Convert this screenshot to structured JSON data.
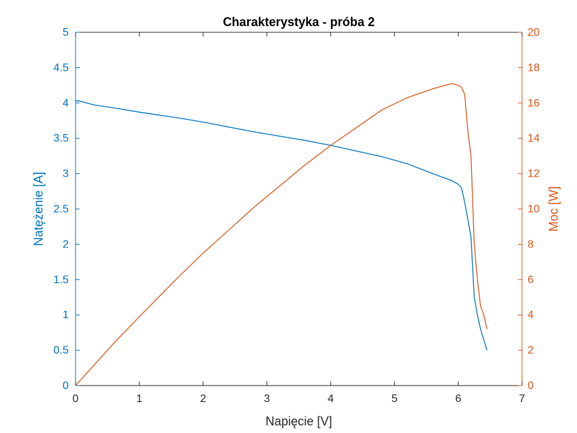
{
  "chart_data": {
    "type": "line",
    "title": "Charakterystyka - próba 2",
    "xlabel": "Napięcie [V]",
    "ylabel_left": "Natężenie [A]",
    "ylabel_right": "Moc [W]",
    "xlim": [
      0,
      7
    ],
    "ylim_left": [
      0,
      5
    ],
    "ylim_right": [
      0,
      20
    ],
    "x_ticks": [
      "0",
      "1",
      "2",
      "3",
      "4",
      "5",
      "6",
      "7"
    ],
    "y_ticks_left": [
      "0",
      "0.5",
      "1",
      "1.5",
      "2",
      "2.5",
      "3",
      "3.5",
      "4",
      "4.5",
      "5"
    ],
    "y_ticks_right": [
      "0",
      "2",
      "4",
      "6",
      "8",
      "10",
      "12",
      "14",
      "16",
      "18",
      "20"
    ],
    "grid": false,
    "colors": {
      "current": "#0072BD",
      "power": "#D95319",
      "axis": "#262626"
    },
    "series": [
      {
        "axis": "left",
        "x": [
          0.0,
          0.05,
          0.3,
          0.6,
          1.0,
          1.3,
          1.6,
          2.0,
          2.4,
          2.8,
          3.2,
          3.6,
          4.0,
          4.4,
          4.8,
          5.2,
          5.6,
          5.9,
          6.0,
          6.05,
          6.1,
          6.15,
          6.2,
          6.25,
          6.3,
          6.35,
          6.4,
          6.45
        ],
        "values": [
          4.03,
          4.03,
          3.97,
          3.93,
          3.87,
          3.83,
          3.79,
          3.73,
          3.66,
          3.59,
          3.53,
          3.47,
          3.4,
          3.32,
          3.24,
          3.14,
          3.0,
          2.9,
          2.85,
          2.8,
          2.6,
          2.35,
          2.1,
          1.25,
          1.0,
          0.8,
          0.65,
          0.5
        ]
      },
      {
        "axis": "right",
        "x": [
          0.0,
          0.05,
          0.3,
          0.6,
          1.0,
          1.3,
          1.6,
          2.0,
          2.4,
          2.8,
          3.2,
          3.6,
          4.0,
          4.4,
          4.8,
          5.2,
          5.6,
          5.9,
          6.0,
          6.05,
          6.1,
          6.15,
          6.2,
          6.25,
          6.3,
          6.35,
          6.4,
          6.45
        ],
        "values": [
          0.0,
          0.2,
          1.2,
          2.4,
          3.9,
          5.0,
          6.1,
          7.5,
          8.8,
          10.1,
          11.3,
          12.5,
          13.6,
          14.6,
          15.6,
          16.3,
          16.8,
          17.1,
          17.0,
          16.9,
          16.5,
          14.4,
          13.0,
          8.0,
          6.0,
          4.5,
          4.0,
          3.2
        ]
      }
    ]
  }
}
